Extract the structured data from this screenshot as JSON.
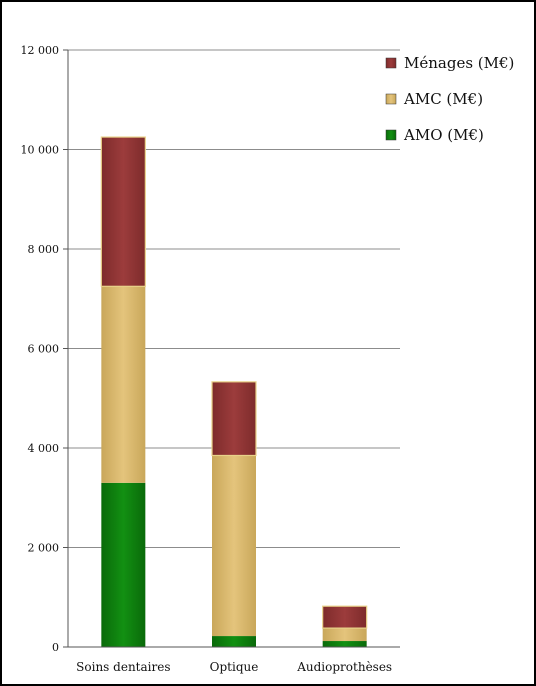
{
  "chart_data": {
    "type": "bar",
    "stacked": true,
    "categories": [
      "Soins dentaires",
      "Optique",
      "Audioprothèses"
    ],
    "series": [
      {
        "name": "AMO (M€)",
        "values": [
          3300,
          220,
          120
        ],
        "color": "#0f7a0f"
      },
      {
        "name": "AMC (M€)",
        "values": [
          3950,
          3630,
          260
        ],
        "color": "#d9b76a"
      },
      {
        "name": "Ménages (M€)",
        "values": [
          3000,
          1480,
          440
        ],
        "color": "#8e3535"
      }
    ],
    "ylim": [
      0,
      12000
    ],
    "yticks": [
      0,
      2000,
      4000,
      6000,
      8000,
      10000,
      12000
    ],
    "ytick_labels": [
      "0",
      "2 000",
      "4 000",
      "6 000",
      "8 000",
      "10 000",
      "12 000"
    ],
    "grid": true,
    "legend_position": "top-right",
    "legend_order": [
      2,
      1,
      0
    ]
  }
}
